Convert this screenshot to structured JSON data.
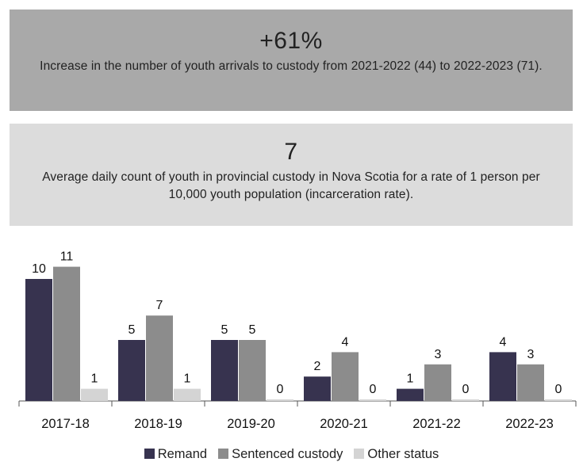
{
  "stat1": {
    "value": "+61%",
    "description": "Increase in the number of youth arrivals to custody from 2021-2022 (44) to 2022-2023 (71)."
  },
  "stat2": {
    "value": "7",
    "description": "Average daily count of youth in provincial custody in Nova Scotia for a rate of 1 person per 10,000 youth population (incarceration rate)."
  },
  "colors": {
    "box1_bg": "#a9a9a9",
    "box2_bg": "#dcdcdc",
    "Remand": "#37334f",
    "Sentenced custody": "#8c8c8c",
    "Other status": "#d4d4d4"
  },
  "chart_data": {
    "type": "bar",
    "categories": [
      "2017-18",
      "2018-19",
      "2019-20",
      "2020-21",
      "2021-22",
      "2022-23"
    ],
    "series": [
      {
        "name": "Remand",
        "values": [
          10,
          5,
          5,
          2,
          1,
          4
        ]
      },
      {
        "name": "Sentenced custody",
        "values": [
          11,
          7,
          5,
          4,
          3,
          3
        ]
      },
      {
        "name": "Other status",
        "values": [
          1,
          1,
          0,
          0,
          0,
          0
        ]
      }
    ],
    "title": "",
    "xlabel": "",
    "ylabel": "",
    "ylim": [
      0,
      11
    ],
    "legend_position": "bottom",
    "grid": false
  }
}
